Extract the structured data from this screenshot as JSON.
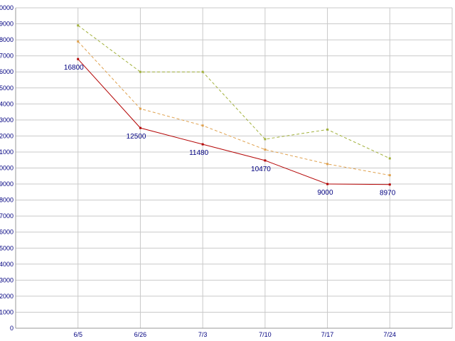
{
  "chart_data": {
    "type": "line",
    "title": "",
    "xlabel": "",
    "ylabel": "",
    "x_labels": [
      "6/5",
      "6/26",
      "7/3",
      "7/10",
      "7/17",
      "7/24"
    ],
    "ylim": [
      0,
      20000
    ],
    "y_tick_step": 1000,
    "grid": true,
    "legend": "none",
    "series": [
      {
        "name": "series-red-solid",
        "color": "#b40404",
        "dash": false,
        "marker": true,
        "values": [
          16800,
          12500,
          11480,
          10470,
          9000,
          8970
        ],
        "point_labels": [
          "16800",
          "12500",
          "11480",
          "10470",
          "9000",
          "8970"
        ]
      },
      {
        "name": "series-orange-dashed",
        "color": "#dfa14e",
        "dash": true,
        "marker": true,
        "values": [
          17900,
          13700,
          12650,
          11150,
          10250,
          9550
        ]
      },
      {
        "name": "series-green-dashed",
        "color": "#a2b13c",
        "dash": true,
        "marker": true,
        "values": [
          18900,
          16000,
          16000,
          11800,
          12400,
          10600
        ]
      }
    ],
    "colors": {
      "background": "#ffffff",
      "grid": "#c9c9c9",
      "axis": "#999999",
      "tick_label": "#000080",
      "data_label": "#000080"
    }
  }
}
